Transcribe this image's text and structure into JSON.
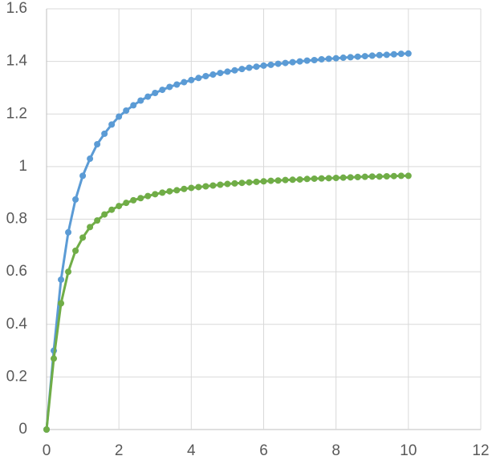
{
  "chart_data": {
    "type": "scatter-line",
    "x": [
      0,
      0.2,
      0.4,
      0.6,
      0.8,
      1,
      1.2,
      1.4,
      1.6,
      1.8,
      2,
      2.2,
      2.4,
      2.6,
      2.8,
      3,
      3.2,
      3.4,
      3.6,
      3.8,
      4,
      4.2,
      4.4,
      4.6,
      4.8,
      5,
      5.2,
      5.4,
      5.6,
      5.8,
      6,
      6.2,
      6.4,
      6.6,
      6.8,
      7,
      7.2,
      7.4,
      7.6,
      7.8,
      8,
      8.2,
      8.4,
      8.6,
      8.8,
      9,
      9.2,
      9.4,
      9.6,
      9.8,
      10
    ],
    "series": [
      {
        "color": "#5b9bd5",
        "values": [
          0,
          0.3,
          0.57,
          0.75,
          0.875,
          0.965,
          1.03,
          1.085,
          1.125,
          1.16,
          1.19,
          1.213,
          1.233,
          1.251,
          1.266,
          1.28,
          1.292,
          1.303,
          1.312,
          1.321,
          1.329,
          1.337,
          1.344,
          1.35,
          1.356,
          1.361,
          1.366,
          1.371,
          1.376,
          1.38,
          1.384,
          1.387,
          1.391,
          1.394,
          1.397,
          1.4,
          1.403,
          1.405,
          1.408,
          1.41,
          1.412,
          1.414,
          1.416,
          1.418,
          1.42,
          1.422,
          1.424,
          1.425,
          1.427,
          1.429,
          1.43
        ]
      },
      {
        "color": "#70ad47",
        "values": [
          0,
          0.27,
          0.48,
          0.6,
          0.68,
          0.73,
          0.77,
          0.795,
          0.818,
          0.836,
          0.85,
          0.862,
          0.872,
          0.88,
          0.888,
          0.895,
          0.901,
          0.906,
          0.91,
          0.915,
          0.919,
          0.922,
          0.925,
          0.928,
          0.931,
          0.934,
          0.936,
          0.938,
          0.94,
          0.942,
          0.944,
          0.946,
          0.947,
          0.949,
          0.95,
          0.951,
          0.953,
          0.954,
          0.955,
          0.956,
          0.957,
          0.958,
          0.959,
          0.96,
          0.961,
          0.962,
          0.962,
          0.963,
          0.964,
          0.965,
          0.965
        ]
      }
    ],
    "xlim": [
      0,
      12
    ],
    "xticks": [
      0,
      2,
      4,
      6,
      8,
      10,
      12
    ],
    "ylim": [
      0,
      1.6
    ],
    "yticks": [
      0,
      0.2,
      0.4,
      0.6,
      0.8,
      1,
      1.2,
      1.4,
      1.6
    ],
    "grid": true
  }
}
